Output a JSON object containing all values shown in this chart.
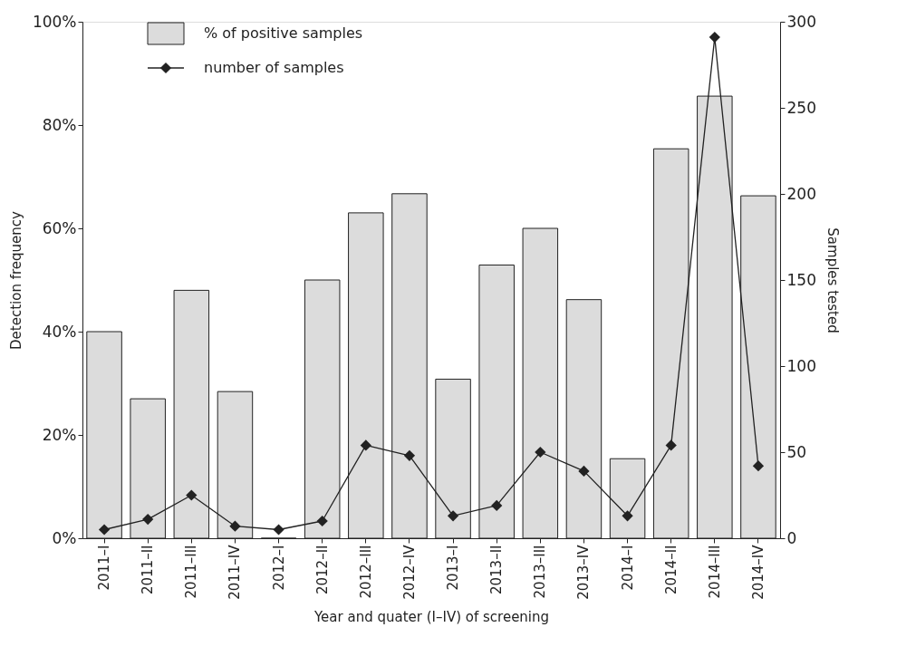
{
  "chart_data": {
    "type": "bar",
    "xlabel": "Year and quater (I–IV) of screening",
    "ylabel": "Detection frequency",
    "y2label": "Samples tested",
    "categories": [
      "2011–I",
      "2011–II",
      "2011–III",
      "2011–IV",
      "2012–I",
      "2012–II",
      "2012–III",
      "2012–IV",
      "2013–I",
      "2013–II",
      "2013–III",
      "2013–IV",
      "2014–I",
      "2014–II",
      "2014–III",
      "2014–IV"
    ],
    "series": [
      {
        "name": "% of positive samples",
        "color": "#dcdcdc",
        "values": [
          40,
          27,
          48,
          28.4,
          0,
          50,
          63,
          66.7,
          30.8,
          52.9,
          60,
          46.2,
          15.4,
          75.4,
          85.6,
          66.3
        ]
      },
      {
        "name": "number of samples",
        "type": "line",
        "axis": "y2",
        "color": "#222222",
        "marker": "diamond",
        "line_style": "solid",
        "values": [
          5,
          11,
          25,
          7,
          5,
          10,
          54,
          48,
          13,
          19,
          50,
          39,
          13,
          54,
          291,
          42
        ]
      }
    ],
    "ylim": [
      0,
      100
    ],
    "yticks": [
      {
        "value": 0,
        "label": "0%"
      },
      {
        "value": 20,
        "label": "20%"
      },
      {
        "value": 40,
        "label": "40%"
      },
      {
        "value": 60,
        "label": "60%"
      },
      {
        "value": 80,
        "label": "80%"
      },
      {
        "value": 100,
        "label": "100%"
      }
    ],
    "y2lim": [
      0,
      300
    ],
    "y2ticks": [
      0,
      50,
      100,
      150,
      200,
      250,
      300
    ],
    "grid": false,
    "legend": "top left"
  }
}
